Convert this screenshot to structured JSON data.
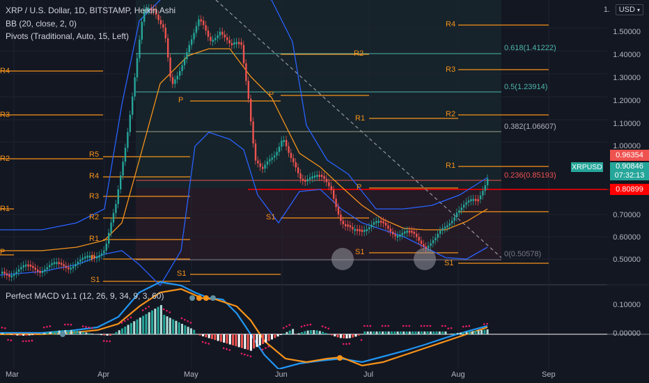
{
  "header": {
    "symbol_title": "XRP / U.S. Dollar, 1D, BITSTAMP, Heikin Ashi",
    "bb_legend": "BB (20, close, 2, 0)",
    "pivots_legend": "Pivots (Traditional, Auto, 15, Left)",
    "currency": "USD",
    "currency_icon": "dropdown-chevron-icon"
  },
  "macd_legend": "Perfect MACD v1.1 (12, 26, 9, 34, 9, 3, 60)",
  "price_axis": [
    "1.50000",
    "1.40000",
    "1.30000",
    "1.20000",
    "1.10000",
    "1.00000",
    "0.70000",
    "0.60000",
    "0.50000"
  ],
  "price_axis_top": "1.",
  "macd_axis": [
    "0.10000",
    "0.00000"
  ],
  "time_axis": [
    "Mar",
    "Apr",
    "May",
    "Jun",
    "Jul",
    "Aug",
    "Sep"
  ],
  "price_tags": {
    "high": "0.96354",
    "symbol": "XRPUSD",
    "last": "0.90846",
    "countdown": "07:32:13",
    "red_level": "0.80899"
  },
  "fib_labels": {
    "f618": "0.618(1.41222)",
    "f50": "0.5(1.23914)",
    "f382": "0.382(1.06607)",
    "f236": "0.236(0.85193)",
    "f0": "0(0.50578)"
  },
  "pivot_labels": {
    "left": [
      "R4",
      "R3",
      "R2",
      "R1",
      "P"
    ],
    "apr": [
      "R5",
      "R4",
      "R3",
      "R2",
      "R1",
      "P",
      "S1"
    ],
    "may": [
      "P",
      "S1"
    ],
    "jun": [
      "R2",
      "P",
      "R1",
      "S1"
    ],
    "jul": [
      "S1",
      "P"
    ],
    "aug": [
      "R4",
      "R3",
      "R2",
      "R1",
      "S1"
    ]
  },
  "colors": {
    "bg": "#131722",
    "up": "#26a69a",
    "down": "#ef5350",
    "pivot": "#f7931a",
    "fib": "#4db6ac",
    "bb": "#2962ff",
    "red_line": "#ff0000"
  }
}
